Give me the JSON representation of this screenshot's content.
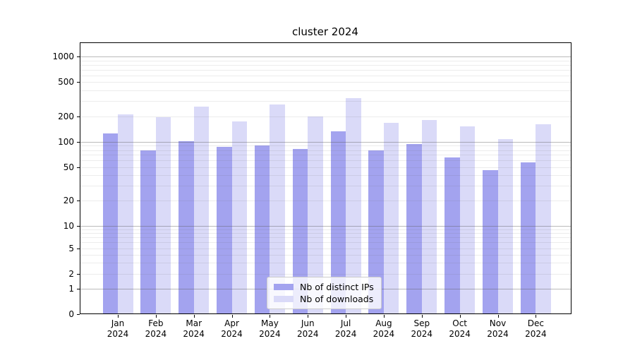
{
  "title": "cluster 2024",
  "legend": {
    "items": [
      {
        "label": "Nb of distinct IPs",
        "color": "#a3a3ef"
      },
      {
        "label": "Nb of downloads",
        "color": "#dadaf8"
      }
    ]
  },
  "chart_data": {
    "type": "bar",
    "title": "cluster 2024",
    "categories": [
      "Jan 2024",
      "Feb 2024",
      "Mar 2024",
      "Apr 2024",
      "May 2024",
      "Jun 2024",
      "Jul 2024",
      "Aug 2024",
      "Sep 2024",
      "Oct 2024",
      "Nov 2024",
      "Dec 2024"
    ],
    "x_tick_line1": [
      "Jan",
      "Feb",
      "Mar",
      "Apr",
      "May",
      "Jun",
      "Jul",
      "Aug",
      "Sep",
      "Oct",
      "Nov",
      "Dec"
    ],
    "x_tick_line2": "2024",
    "series": [
      {
        "name": "Nb of distinct IPs",
        "color": "#a3a3ef",
        "values": [
          125,
          80,
          102,
          88,
          91,
          82,
          132,
          80,
          95,
          65,
          46,
          57
        ]
      },
      {
        "name": "Nb of downloads",
        "color": "#dadaf8",
        "values": [
          210,
          195,
          260,
          175,
          275,
          197,
          327,
          167,
          181,
          152,
          107,
          161
        ]
      }
    ],
    "xlabel": "",
    "ylabel": "",
    "yscale": "symlog",
    "yticks": [
      0,
      1,
      2,
      5,
      10,
      20,
      50,
      100,
      200,
      500,
      1000
    ],
    "ylim": [
      0,
      1468
    ],
    "grid": "horizontal major and log-minor gridlines",
    "legend_position": "lower center"
  }
}
